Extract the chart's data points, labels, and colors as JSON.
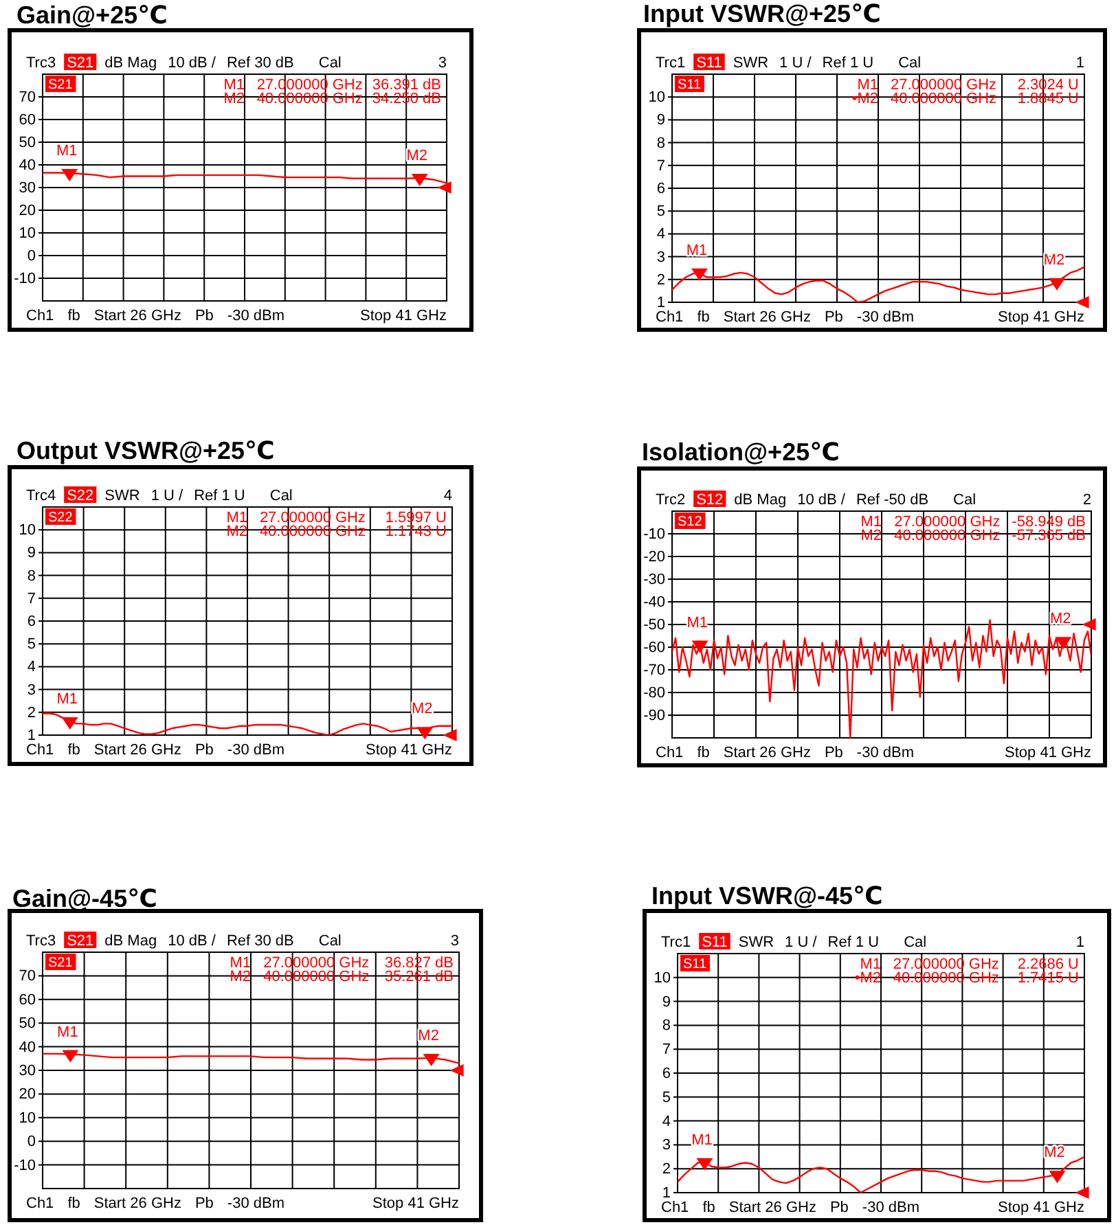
{
  "chart_data": [
    {
      "type": "line",
      "title": "Gain@+25℃",
      "categories": [
        null,
        null,
        null,
        null,
        null,
        null,
        null,
        null,
        null,
        null,
        null,
        null,
        null,
        null,
        null,
        null,
        null,
        null,
        null,
        null,
        null,
        null,
        null,
        null,
        null,
        null,
        null,
        null,
        null,
        null,
        null
      ],
      "series": [
        {
          "color": "#ff0000",
          "values": [
            36.5,
            36.5,
            36.391,
            36,
            35.5,
            34.5,
            35,
            35,
            35,
            35,
            35.5,
            35.5,
            35.5,
            35.5,
            35.5,
            35.5,
            35.5,
            35,
            34.5,
            34.5,
            34.5,
            34.5,
            34.5,
            34,
            34,
            34,
            34,
            34,
            34.25,
            33.5,
            32
          ]
        },
        {
          "name": "M1",
          "type": "scatter",
          "marker": "triangle",
          "color": "#ff0000",
          "values": [
            null,
            null,
            36.391,
            null,
            null,
            null,
            null,
            null,
            null,
            null,
            null,
            null,
            null,
            null,
            null,
            null,
            null,
            null,
            null,
            null,
            null,
            null,
            null,
            null,
            null,
            null,
            null,
            null,
            null,
            null,
            null
          ]
        },
        {
          "name": "M2",
          "type": "scatter",
          "marker": "triangle",
          "color": "#ff0000",
          "values": [
            null,
            null,
            null,
            null,
            null,
            null,
            null,
            null,
            null,
            null,
            null,
            null,
            null,
            null,
            null,
            null,
            null,
            null,
            null,
            null,
            null,
            null,
            null,
            null,
            null,
            null,
            null,
            null,
            34.25,
            null,
            null
          ]
        },
        {
          "type": "scatter",
          "marker": "triangle",
          "color": "#ff0000",
          "values": [
            null,
            null,
            null,
            null,
            null,
            null,
            null,
            null,
            null,
            null,
            null,
            null,
            null,
            null,
            null,
            null,
            null,
            null,
            null,
            null,
            null,
            null,
            null,
            null,
            null,
            null,
            null,
            null,
            null,
            null,
            30
          ]
        }
      ],
      "ylim": [
        -20,
        80
      ],
      "yticks": [
        -10,
        0,
        10,
        20,
        30,
        40,
        50,
        60,
        70
      ],
      "grid": true,
      "tick_labels": "y",
      "annotations": [
        "Trc3",
        "S21",
        "dB Mag",
        "10 dB /",
        "Ref 30 dB",
        "Cal",
        "3",
        "S21",
        "M1",
        "27.000000 GHz",
        "36.391 dB",
        "M2",
        "40.000000 GHz",
        "34.250 dB",
        "Ch1",
        "fb",
        "Start 26 GHz",
        "Pb",
        "-30 dBm",
        "Stop 41 GHz"
      ]
    },
    {
      "type": "line",
      "title": "Input VSWR@+25℃",
      "categories": [
        null,
        null,
        null,
        null,
        null,
        null,
        null,
        null,
        null,
        null,
        null,
        null,
        null,
        null,
        null,
        null,
        null,
        null,
        null,
        null,
        null,
        null,
        null,
        null,
        null,
        null,
        null,
        null,
        null,
        null,
        null,
        null,
        null,
        null,
        null,
        null,
        null,
        null,
        null,
        null,
        null,
        null,
        null,
        null,
        null,
        null,
        null,
        null,
        null,
        null,
        null,
        null,
        null,
        null,
        null,
        null,
        null,
        null,
        null,
        null,
        null
      ],
      "series": [
        {
          "color": "#ff0000",
          "values": [
            1.55,
            1.85,
            2.1,
            2.25,
            2.3024,
            2.1,
            2.1,
            2.1,
            2.15,
            2.25,
            2.3,
            2.25,
            2.1,
            1.85,
            1.6,
            1.4,
            1.35,
            1.45,
            1.65,
            1.8,
            1.9,
            1.95,
            1.95,
            1.8,
            1.6,
            1.45,
            1.25,
            1,
            1.05,
            1.2,
            1.35,
            1.5,
            1.6,
            1.7,
            1.8,
            1.9,
            1.9,
            1.9,
            1.85,
            1.8,
            1.7,
            1.65,
            1.55,
            1.5,
            1.45,
            1.4,
            1.35,
            1.35,
            1.4,
            1.4,
            1.45,
            1.5,
            1.55,
            1.6,
            1.65,
            1.75,
            1.8845,
            2.1,
            2.3,
            2.4,
            2.55
          ]
        },
        {
          "name": "M1",
          "type": "scatter",
          "marker": "triangle",
          "color": "#ff0000",
          "values": [
            null,
            null,
            null,
            null,
            2.3024,
            null,
            null,
            null,
            null,
            null,
            null,
            null,
            null,
            null,
            null,
            null,
            null,
            null,
            null,
            null,
            null,
            null,
            null,
            null,
            null,
            null,
            null,
            null,
            null,
            null,
            null,
            null,
            null,
            null,
            null,
            null,
            null,
            null,
            null,
            null,
            null,
            null,
            null,
            null,
            null,
            null,
            null,
            null,
            null,
            null,
            null,
            null,
            null,
            null,
            null,
            null,
            null,
            null,
            null,
            null,
            null
          ]
        },
        {
          "name": "M2",
          "type": "scatter",
          "marker": "triangle",
          "color": "#ff0000",
          "values": [
            null,
            null,
            null,
            null,
            null,
            null,
            null,
            null,
            null,
            null,
            null,
            null,
            null,
            null,
            null,
            null,
            null,
            null,
            null,
            null,
            null,
            null,
            null,
            null,
            null,
            null,
            null,
            null,
            null,
            null,
            null,
            null,
            null,
            null,
            null,
            null,
            null,
            null,
            null,
            null,
            null,
            null,
            null,
            null,
            null,
            null,
            null,
            null,
            null,
            null,
            null,
            null,
            null,
            null,
            null,
            null,
            1.8845,
            null,
            null,
            null,
            null
          ]
        },
        {
          "type": "scatter",
          "marker": "triangle",
          "color": "#ff0000",
          "values": [
            null,
            null,
            null,
            null,
            null,
            null,
            null,
            null,
            null,
            null,
            null,
            null,
            null,
            null,
            null,
            null,
            null,
            null,
            null,
            null,
            null,
            null,
            null,
            null,
            null,
            null,
            null,
            null,
            null,
            null,
            null,
            null,
            null,
            null,
            null,
            null,
            null,
            null,
            null,
            null,
            null,
            null,
            null,
            null,
            null,
            null,
            null,
            null,
            null,
            null,
            null,
            null,
            null,
            null,
            null,
            null,
            null,
            null,
            null,
            null,
            1
          ]
        }
      ],
      "ylim": [
        1,
        11
      ],
      "yticks": [
        1,
        2,
        3,
        4,
        5,
        6,
        7,
        8,
        9,
        10
      ],
      "grid": true,
      "tick_labels": "y",
      "annotations": [
        "Trc1",
        "S11",
        "SWR",
        "1 U /",
        "Ref 1 U",
        "Cal",
        "1",
        "S11",
        "M1",
        "27.000000 GHz",
        "2.3024 U",
        "•M2",
        "40.000000 GHz",
        "1.8845 U",
        "Ch1",
        "fb",
        "Start 26 GHz",
        "Pb",
        "-30 dBm",
        "Stop 41 GHz"
      ]
    },
    {
      "type": "line",
      "title": "Output VSWR@+25℃",
      "categories": [
        null,
        null,
        null,
        null,
        null,
        null,
        null,
        null,
        null,
        null,
        null,
        null,
        null,
        null,
        null,
        null,
        null,
        null,
        null,
        null,
        null,
        null,
        null,
        null,
        null,
        null,
        null,
        null,
        null,
        null,
        null,
        null,
        null,
        null,
        null,
        null,
        null,
        null,
        null,
        null,
        null,
        null,
        null,
        null,
        null,
        null,
        null,
        null,
        null,
        null,
        null,
        null,
        null,
        null,
        null,
        null,
        null,
        null,
        null,
        null,
        null
      ],
      "series": [
        {
          "color": "#ff0000",
          "values": [
            1.95,
            1.95,
            1.9,
            1.75,
            1.5997,
            1.5,
            1.5,
            1.45,
            1.45,
            1.5,
            1.5,
            1.4,
            1.3,
            1.2,
            1.1,
            1.05,
            1.05,
            1.1,
            1.2,
            1.3,
            1.35,
            1.4,
            1.45,
            1.45,
            1.4,
            1.35,
            1.3,
            1.3,
            1.35,
            1.4,
            1.4,
            1.45,
            1.45,
            1.45,
            1.45,
            1.45,
            1.4,
            1.35,
            1.3,
            1.2,
            1.1,
            1.05,
            1,
            1.1,
            1.25,
            1.35,
            1.45,
            1.5,
            1.45,
            1.4,
            1.3,
            1.15,
            1.2,
            1.25,
            1.3,
            1.3,
            1.1743,
            1.35,
            1.4,
            1.4,
            1.4
          ]
        },
        {
          "name": "M1",
          "type": "scatter",
          "marker": "triangle",
          "color": "#ff0000",
          "values": [
            null,
            null,
            null,
            null,
            1.5997,
            null,
            null,
            null,
            null,
            null,
            null,
            null,
            null,
            null,
            null,
            null,
            null,
            null,
            null,
            null,
            null,
            null,
            null,
            null,
            null,
            null,
            null,
            null,
            null,
            null,
            null,
            null,
            null,
            null,
            null,
            null,
            null,
            null,
            null,
            null,
            null,
            null,
            null,
            null,
            null,
            null,
            null,
            null,
            null,
            null,
            null,
            null,
            null,
            null,
            null,
            null,
            null,
            null,
            null,
            null,
            null
          ]
        },
        {
          "name": "M2",
          "type": "scatter",
          "marker": "triangle",
          "color": "#ff0000",
          "values": [
            null,
            null,
            null,
            null,
            null,
            null,
            null,
            null,
            null,
            null,
            null,
            null,
            null,
            null,
            null,
            null,
            null,
            null,
            null,
            null,
            null,
            null,
            null,
            null,
            null,
            null,
            null,
            null,
            null,
            null,
            null,
            null,
            null,
            null,
            null,
            null,
            null,
            null,
            null,
            null,
            null,
            null,
            null,
            null,
            null,
            null,
            null,
            null,
            null,
            null,
            null,
            null,
            null,
            null,
            null,
            null,
            1.1743,
            null,
            null,
            null,
            null
          ]
        },
        {
          "type": "scatter",
          "marker": "triangle",
          "color": "#ff0000",
          "values": [
            null,
            null,
            null,
            null,
            null,
            null,
            null,
            null,
            null,
            null,
            null,
            null,
            null,
            null,
            null,
            null,
            null,
            null,
            null,
            null,
            null,
            null,
            null,
            null,
            null,
            null,
            null,
            null,
            null,
            null,
            null,
            null,
            null,
            null,
            null,
            null,
            null,
            null,
            null,
            null,
            null,
            null,
            null,
            null,
            null,
            null,
            null,
            null,
            null,
            null,
            null,
            null,
            null,
            null,
            null,
            null,
            null,
            null,
            null,
            null,
            1
          ]
        }
      ],
      "ylim": [
        1,
        11
      ],
      "yticks": [
        1,
        2,
        3,
        4,
        5,
        6,
        7,
        8,
        9,
        10
      ],
      "grid": true,
      "tick_labels": "y",
      "annotations": [
        "Trc4",
        "S22",
        "SWR",
        "1 U /",
        "Ref 1 U",
        "Cal",
        "4",
        "S22",
        "M1",
        "27.000000 GHz",
        "1.5997 U",
        "M2",
        "40.000000 GHz",
        "1.1743 U",
        "Ch1",
        "fb",
        "Start 26 GHz",
        "Pb",
        "-30 dBm",
        "Stop 41 GHz"
      ]
    },
    {
      "type": "line",
      "title": "Isolation@+25℃",
      "categories": [
        null,
        null,
        null,
        null,
        null,
        null,
        null,
        null,
        null,
        null,
        null,
        null,
        null,
        null,
        null,
        null,
        null,
        null,
        null,
        null,
        null,
        null,
        null,
        null,
        null,
        null,
        null,
        null,
        null,
        null,
        null,
        null,
        null,
        null,
        null,
        null,
        null,
        null,
        null,
        null,
        null,
        null,
        null,
        null,
        null,
        null,
        null,
        null,
        null,
        null,
        null,
        null,
        null,
        null,
        null,
        null,
        null,
        null,
        null,
        null,
        null,
        null,
        null,
        null,
        null,
        null,
        null,
        null,
        null,
        null,
        null,
        null,
        null,
        null,
        null,
        null,
        null,
        null,
        null,
        null,
        null,
        null,
        null,
        null,
        null,
        null,
        null,
        null,
        null,
        null,
        null,
        null,
        null,
        null,
        null,
        null,
        null,
        null,
        null,
        null,
        null,
        null,
        null,
        null,
        null,
        null,
        null,
        null,
        null,
        null,
        null,
        null,
        null,
        null,
        null,
        null,
        null,
        null,
        null,
        null,
        null
      ],
      "series": [
        {
          "color": "#ff0000",
          "values": [
            -62,
            -56,
            -71,
            -60,
            -66,
            -73,
            -59,
            -63,
            -58.949,
            -67,
            -61,
            -70,
            -57,
            -65,
            -60,
            -72,
            -55,
            -64,
            -68,
            -59,
            -66,
            -61,
            -70,
            -57,
            -63,
            -67,
            -60,
            -58,
            -84,
            -65,
            -61,
            -69,
            -57,
            -66,
            -62,
            -79,
            -60,
            -68,
            -56,
            -64,
            -61,
            -70,
            -77,
            -58,
            -66,
            -62,
            -71,
            -57,
            -64,
            -60,
            -67,
            -100,
            -61,
            -69,
            -56,
            -65,
            -61,
            -72,
            -58,
            -66,
            -60,
            -64,
            -57,
            -88,
            -62,
            -68,
            -59,
            -66,
            -61,
            -71,
            -63,
            -82,
            -59,
            -67,
            -56,
            -64,
            -60,
            -70,
            -58,
            -66,
            -62,
            -57,
            -75,
            -63,
            -58,
            -51,
            -66,
            -58,
            -69,
            -55,
            -62,
            -48,
            -64,
            -57,
            -60,
            -76,
            -56,
            -63,
            -53,
            -67,
            -58,
            -62,
            -54,
            -68,
            -57,
            -63,
            -60,
            -72,
            -55,
            -61,
            -56,
            -64,
            -57.365,
            -59,
            -66,
            -54,
            -62,
            -71,
            -57,
            -53,
            -64
          ]
        },
        {
          "name": "M1",
          "type": "scatter",
          "marker": "triangle",
          "color": "#ff0000",
          "values": [
            null,
            null,
            null,
            null,
            null,
            null,
            null,
            null,
            -58.949,
            null,
            null,
            null,
            null,
            null,
            null,
            null,
            null,
            null,
            null,
            null,
            null,
            null,
            null,
            null,
            null,
            null,
            null,
            null,
            null,
            null,
            null,
            null,
            null,
            null,
            null,
            null,
            null,
            null,
            null,
            null,
            null,
            null,
            null,
            null,
            null,
            null,
            null,
            null,
            null,
            null,
            null,
            null,
            null,
            null,
            null,
            null,
            null,
            null,
            null,
            null,
            null,
            null,
            null,
            null,
            null,
            null,
            null,
            null,
            null,
            null,
            null,
            null,
            null,
            null,
            null,
            null,
            null,
            null,
            null,
            null,
            null,
            null,
            null,
            null,
            null,
            null,
            null,
            null,
            null,
            null,
            null,
            null,
            null,
            null,
            null,
            null,
            null,
            null,
            null,
            null,
            null,
            null,
            null,
            null,
            null,
            null,
            null,
            null,
            null,
            null,
            null,
            null,
            null,
            null,
            null,
            null,
            null,
            null,
            null,
            null,
            null
          ]
        },
        {
          "name": "M2",
          "type": "scatter",
          "marker": "triangle",
          "color": "#ff0000",
          "values": [
            null,
            null,
            null,
            null,
            null,
            null,
            null,
            null,
            null,
            null,
            null,
            null,
            null,
            null,
            null,
            null,
            null,
            null,
            null,
            null,
            null,
            null,
            null,
            null,
            null,
            null,
            null,
            null,
            null,
            null,
            null,
            null,
            null,
            null,
            null,
            null,
            null,
            null,
            null,
            null,
            null,
            null,
            null,
            null,
            null,
            null,
            null,
            null,
            null,
            null,
            null,
            null,
            null,
            null,
            null,
            null,
            null,
            null,
            null,
            null,
            null,
            null,
            null,
            null,
            null,
            null,
            null,
            null,
            null,
            null,
            null,
            null,
            null,
            null,
            null,
            null,
            null,
            null,
            null,
            null,
            null,
            null,
            null,
            null,
            null,
            null,
            null,
            null,
            null,
            null,
            null,
            null,
            null,
            null,
            null,
            null,
            null,
            null,
            null,
            null,
            null,
            null,
            null,
            null,
            null,
            null,
            null,
            null,
            null,
            null,
            null,
            null,
            -57.365,
            null,
            null,
            null,
            null,
            null,
            null,
            null,
            null
          ]
        },
        {
          "type": "scatter",
          "marker": "triangle",
          "color": "#ff0000",
          "values": [
            null,
            null,
            null,
            null,
            null,
            null,
            null,
            null,
            null,
            null,
            null,
            null,
            null,
            null,
            null,
            null,
            null,
            null,
            null,
            null,
            null,
            null,
            null,
            null,
            null,
            null,
            null,
            null,
            null,
            null,
            null,
            null,
            null,
            null,
            null,
            null,
            null,
            null,
            null,
            null,
            null,
            null,
            null,
            null,
            null,
            null,
            null,
            null,
            null,
            null,
            null,
            null,
            null,
            null,
            null,
            null,
            null,
            null,
            null,
            null,
            null,
            null,
            null,
            null,
            null,
            null,
            null,
            null,
            null,
            null,
            null,
            null,
            null,
            null,
            null,
            null,
            null,
            null,
            null,
            null,
            null,
            null,
            null,
            null,
            null,
            null,
            null,
            null,
            null,
            null,
            null,
            null,
            null,
            null,
            null,
            null,
            null,
            null,
            null,
            null,
            null,
            null,
            null,
            null,
            null,
            null,
            null,
            null,
            null,
            null,
            null,
            null,
            null,
            null,
            null,
            null,
            null,
            null,
            null,
            null,
            -50
          ]
        }
      ],
      "ylim": [
        -100,
        0
      ],
      "yticks": [
        -90,
        -80,
        -70,
        -60,
        -50,
        -40,
        -30,
        -20,
        -10
      ],
      "grid": true,
      "tick_labels": "y",
      "annotations": [
        "Trc2",
        "S12",
        "dB Mag",
        "10 dB /",
        "Ref -50 dB",
        "Cal",
        "2",
        "S12",
        "M1",
        "27.000000 GHz",
        "-58.949 dB",
        "M2",
        "40.000000 GHz",
        "-57.365 dB",
        "Ch1",
        "fb",
        "Start 26 GHz",
        "Pb",
        "-30 dBm",
        "Stop 41 GHz"
      ]
    },
    {
      "type": "line",
      "title": "Gain@-45℃",
      "categories": [
        null,
        null,
        null,
        null,
        null,
        null,
        null,
        null,
        null,
        null,
        null,
        null,
        null,
        null,
        null,
        null,
        null,
        null,
        null,
        null,
        null,
        null,
        null,
        null,
        null,
        null,
        null,
        null,
        null,
        null,
        null
      ],
      "series": [
        {
          "color": "#ff0000",
          "values": [
            37,
            37,
            36.827,
            36.5,
            36,
            35.5,
            35.5,
            35.5,
            35.5,
            35.5,
            36,
            36,
            36,
            36,
            36,
            36,
            35.5,
            35.5,
            35.5,
            35,
            35,
            35,
            35,
            34.5,
            34.5,
            35,
            35,
            35,
            35.261,
            34.5,
            33
          ]
        },
        {
          "name": "M1",
          "type": "scatter",
          "marker": "triangle",
          "color": "#ff0000",
          "values": [
            null,
            null,
            36.827,
            null,
            null,
            null,
            null,
            null,
            null,
            null,
            null,
            null,
            null,
            null,
            null,
            null,
            null,
            null,
            null,
            null,
            null,
            null,
            null,
            null,
            null,
            null,
            null,
            null,
            null,
            null,
            null
          ]
        },
        {
          "name": "M2",
          "type": "scatter",
          "marker": "triangle",
          "color": "#ff0000",
          "values": [
            null,
            null,
            null,
            null,
            null,
            null,
            null,
            null,
            null,
            null,
            null,
            null,
            null,
            null,
            null,
            null,
            null,
            null,
            null,
            null,
            null,
            null,
            null,
            null,
            null,
            null,
            null,
            null,
            35.261,
            null,
            null
          ]
        },
        {
          "type": "scatter",
          "marker": "triangle",
          "color": "#ff0000",
          "values": [
            null,
            null,
            null,
            null,
            null,
            null,
            null,
            null,
            null,
            null,
            null,
            null,
            null,
            null,
            null,
            null,
            null,
            null,
            null,
            null,
            null,
            null,
            null,
            null,
            null,
            null,
            null,
            null,
            null,
            null,
            30
          ]
        }
      ],
      "ylim": [
        -20,
        80
      ],
      "yticks": [
        -10,
        0,
        10,
        20,
        30,
        40,
        50,
        60,
        70
      ],
      "grid": true,
      "tick_labels": "y",
      "annotations": [
        "Trc3",
        "S21",
        "dB Mag",
        "10 dB /",
        "Ref 30 dB",
        "Cal",
        "3",
        "S21",
        "M1",
        "27.000000 GHz",
        "36.827 dB",
        "M2",
        "40.000000 GHz",
        "35.261 dB",
        "Ch1",
        "fb",
        "Start 26 GHz",
        "Pb",
        "-30 dBm",
        "Stop 41 GHz"
      ]
    },
    {
      "type": "line",
      "title": "Input VSWR@-45℃",
      "categories": [
        null,
        null,
        null,
        null,
        null,
        null,
        null,
        null,
        null,
        null,
        null,
        null,
        null,
        null,
        null,
        null,
        null,
        null,
        null,
        null,
        null,
        null,
        null,
        null,
        null,
        null,
        null,
        null,
        null,
        null,
        null,
        null,
        null,
        null,
        null,
        null,
        null,
        null,
        null,
        null,
        null,
        null,
        null,
        null,
        null,
        null,
        null,
        null,
        null,
        null,
        null,
        null,
        null,
        null,
        null,
        null,
        null,
        null,
        null,
        null,
        null
      ],
      "series": [
        {
          "color": "#ff0000",
          "values": [
            1.45,
            1.75,
            2,
            2.25,
            2.2686,
            2.1,
            2.05,
            2.05,
            2.1,
            2.2,
            2.25,
            2.2,
            2.05,
            1.8,
            1.55,
            1.45,
            1.4,
            1.5,
            1.65,
            1.85,
            2,
            2.05,
            2,
            1.8,
            1.6,
            1.45,
            1.25,
            1,
            1.15,
            1.3,
            1.45,
            1.6,
            1.7,
            1.8,
            1.9,
            1.95,
            1.95,
            1.9,
            1.9,
            1.85,
            1.75,
            1.7,
            1.6,
            1.55,
            1.5,
            1.45,
            1.45,
            1.5,
            1.5,
            1.5,
            1.5,
            1.5,
            1.55,
            1.6,
            1.65,
            1.7,
            1.7415,
            2,
            2.25,
            2.35,
            2.5
          ]
        },
        {
          "name": "M1",
          "type": "scatter",
          "marker": "triangle",
          "color": "#ff0000",
          "values": [
            null,
            null,
            null,
            null,
            2.2686,
            null,
            null,
            null,
            null,
            null,
            null,
            null,
            null,
            null,
            null,
            null,
            null,
            null,
            null,
            null,
            null,
            null,
            null,
            null,
            null,
            null,
            null,
            null,
            null,
            null,
            null,
            null,
            null,
            null,
            null,
            null,
            null,
            null,
            null,
            null,
            null,
            null,
            null,
            null,
            null,
            null,
            null,
            null,
            null,
            null,
            null,
            null,
            null,
            null,
            null,
            null,
            null,
            null,
            null,
            null,
            null
          ]
        },
        {
          "name": "M2",
          "type": "scatter",
          "marker": "triangle",
          "color": "#ff0000",
          "values": [
            null,
            null,
            null,
            null,
            null,
            null,
            null,
            null,
            null,
            null,
            null,
            null,
            null,
            null,
            null,
            null,
            null,
            null,
            null,
            null,
            null,
            null,
            null,
            null,
            null,
            null,
            null,
            null,
            null,
            null,
            null,
            null,
            null,
            null,
            null,
            null,
            null,
            null,
            null,
            null,
            null,
            null,
            null,
            null,
            null,
            null,
            null,
            null,
            null,
            null,
            null,
            null,
            null,
            null,
            null,
            null,
            1.7415,
            null,
            null,
            null,
            null
          ]
        },
        {
          "type": "scatter",
          "marker": "triangle",
          "color": "#ff0000",
          "values": [
            null,
            null,
            null,
            null,
            null,
            null,
            null,
            null,
            null,
            null,
            null,
            null,
            null,
            null,
            null,
            null,
            null,
            null,
            null,
            null,
            null,
            null,
            null,
            null,
            null,
            null,
            null,
            null,
            null,
            null,
            null,
            null,
            null,
            null,
            null,
            null,
            null,
            null,
            null,
            null,
            null,
            null,
            null,
            null,
            null,
            null,
            null,
            null,
            null,
            null,
            null,
            null,
            null,
            null,
            null,
            null,
            null,
            null,
            null,
            null,
            1
          ]
        }
      ],
      "ylim": [
        1,
        11
      ],
      "yticks": [
        1,
        2,
        3,
        4,
        5,
        6,
        7,
        8,
        9,
        10
      ],
      "grid": true,
      "tick_labels": "y",
      "annotations": [
        "Trc1",
        "S11",
        "SWR",
        "1 U /",
        "Ref 1 U",
        "Cal",
        "1",
        "S11",
        "M1",
        "27.000000 GHz",
        "2.2686 U",
        "•M2",
        "40.000000 GHz",
        "1.7415 U",
        "Ch1",
        "fb",
        "Start 26 GHz",
        "Pb",
        "-30 dBm",
        "Stop 41 GHz"
      ]
    }
  ]
}
